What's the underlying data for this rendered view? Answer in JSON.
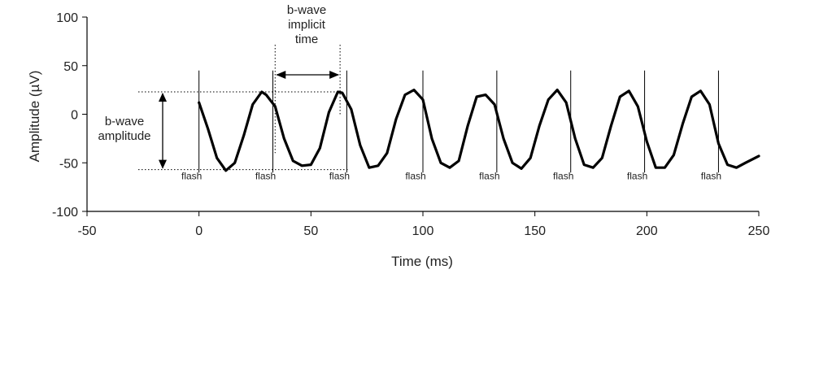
{
  "chart_data": {
    "type": "line",
    "title": "",
    "xlabel": "Time (ms)",
    "ylabel": "Amplitude (µV)",
    "xlim": [
      -50,
      250
    ],
    "ylim": [
      -100,
      100
    ],
    "x_ticks": [
      -50,
      0,
      50,
      100,
      150,
      200,
      250
    ],
    "y_ticks": [
      -100,
      -50,
      0,
      50,
      100
    ],
    "x_tick_labels": [
      "-50",
      "0",
      "50",
      "100",
      "150",
      "200",
      "250"
    ],
    "y_tick_labels": [
      "-100",
      "-50",
      "0",
      "50",
      "100"
    ],
    "grid": false,
    "series": [
      {
        "color": "#000000",
        "x": [
          0,
          4,
          8,
          12,
          16,
          20,
          24,
          28,
          30,
          34,
          38,
          42,
          46,
          50,
          54,
          58,
          62,
          64,
          68,
          72,
          76,
          80,
          84,
          88,
          92,
          96,
          100,
          104,
          108,
          112,
          116,
          120,
          124,
          128,
          132,
          136,
          140,
          144,
          148,
          152,
          156,
          160,
          164,
          168,
          172,
          176,
          180,
          184,
          188,
          192,
          196,
          200,
          204,
          208,
          212,
          216,
          220,
          224,
          228,
          232,
          236,
          240,
          244,
          250
        ],
        "y": [
          12,
          -15,
          -45,
          -58,
          -50,
          -22,
          10,
          23,
          20,
          8,
          -25,
          -48,
          -53,
          -52,
          -35,
          2,
          23,
          22,
          5,
          -32,
          -55,
          -53,
          -40,
          -5,
          20,
          25,
          15,
          -25,
          -50,
          -55,
          -48,
          -12,
          18,
          20,
          10,
          -25,
          -50,
          -56,
          -45,
          -12,
          15,
          25,
          12,
          -25,
          -52,
          -55,
          -45,
          -12,
          18,
          24,
          8,
          -28,
          -55,
          -55,
          -42,
          -10,
          18,
          24,
          10,
          -30,
          -52,
          -55,
          -50,
          -43
        ]
      }
    ],
    "flash_markers": {
      "x": [
        0,
        33,
        66,
        100,
        133,
        166,
        199,
        232
      ],
      "label": "flash"
    },
    "annotations": {
      "amplitude_label": [
        "b-wave",
        "amplitude"
      ],
      "implicit_time_label": [
        "b-wave",
        "implicit",
        "time"
      ],
      "amplitude_range": [
        -57,
        23
      ],
      "implicit_time_range": [
        34,
        63
      ]
    }
  }
}
